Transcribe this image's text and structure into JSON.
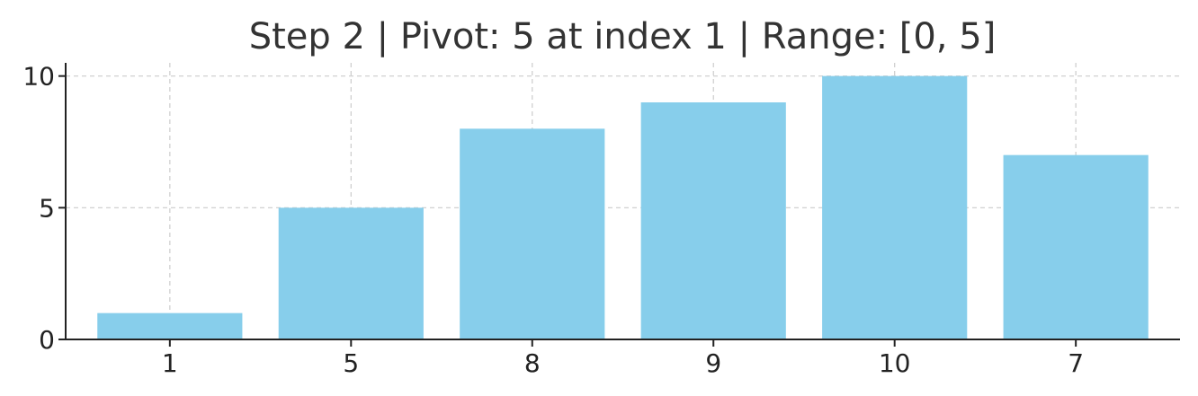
{
  "chart_data": {
    "type": "bar",
    "title": "Step 2 | Pivot: 5 at index 1 | Range: [0, 5]",
    "xlabel": "",
    "ylabel": "",
    "categories": [
      "1",
      "5",
      "8",
      "9",
      "10",
      "7"
    ],
    "values": [
      1,
      5,
      8,
      9,
      10,
      7
    ],
    "ylim": [
      0,
      10.5
    ],
    "yticks": [
      0,
      5,
      10
    ],
    "grid": true,
    "bar_color": "#87CEEB"
  }
}
